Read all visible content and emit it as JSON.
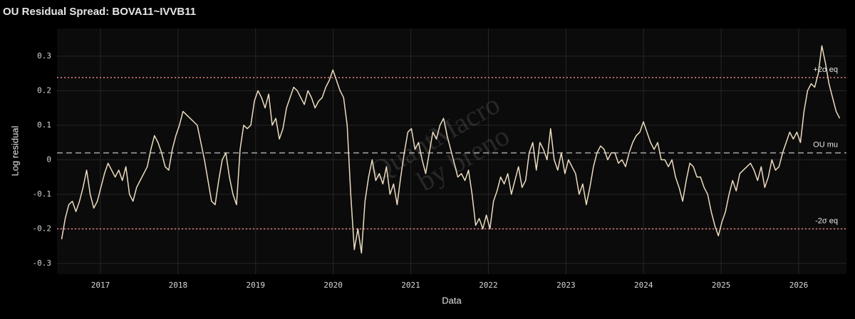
{
  "chart_data": {
    "type": "line",
    "title": "OU Residual Spread: BOVA11~IVVB11",
    "x_label": "Data",
    "y_label": "Log residual",
    "watermark": [
      "QuantMacro",
      "by breno"
    ],
    "color": "#eddcbf",
    "x": [
      2016.5,
      2016.546,
      2016.592,
      2016.638,
      2016.684,
      2016.73,
      2016.776,
      2016.822,
      2016.868,
      2016.914,
      2016.96,
      2017.006,
      2017.052,
      2017.098,
      2017.144,
      2017.19,
      2017.236,
      2017.282,
      2017.328,
      2017.374,
      2017.42,
      2017.466,
      2017.512,
      2017.558,
      2017.604,
      2017.65,
      2017.696,
      2017.742,
      2017.788,
      2017.834,
      2017.88,
      2017.926,
      2017.972,
      2018.018,
      2018.064,
      2018.11,
      2018.156,
      2018.202,
      2018.248,
      2018.294,
      2018.34,
      2018.386,
      2018.432,
      2018.478,
      2018.524,
      2018.57,
      2018.616,
      2018.662,
      2018.708,
      2018.754,
      2018.8,
      2018.846,
      2018.892,
      2018.938,
      2018.984,
      2019.03,
      2019.076,
      2019.122,
      2019.168,
      2019.214,
      2019.26,
      2019.306,
      2019.352,
      2019.398,
      2019.444,
      2019.49,
      2019.536,
      2019.582,
      2019.628,
      2019.674,
      2019.72,
      2019.766,
      2019.812,
      2019.858,
      2019.904,
      2019.95,
      2019.996,
      2020.042,
      2020.088,
      2020.134,
      2020.18,
      2020.226,
      2020.272,
      2020.318,
      2020.364,
      2020.41,
      2020.456,
      2020.502,
      2020.548,
      2020.594,
      2020.64,
      2020.686,
      2020.732,
      2020.778,
      2020.824,
      2020.87,
      2020.916,
      2020.962,
      2021.008,
      2021.054,
      2021.1,
      2021.146,
      2021.192,
      2021.238,
      2021.284,
      2021.33,
      2021.376,
      2021.422,
      2021.468,
      2021.514,
      2021.56,
      2021.606,
      2021.652,
      2021.698,
      2021.744,
      2021.79,
      2021.836,
      2021.882,
      2021.928,
      2021.974,
      2022.02,
      2022.066,
      2022.112,
      2022.158,
      2022.204,
      2022.25,
      2022.296,
      2022.342,
      2022.388,
      2022.434,
      2022.48,
      2022.526,
      2022.572,
      2022.618,
      2022.664,
      2022.71,
      2022.756,
      2022.802,
      2022.848,
      2022.894,
      2022.94,
      2022.986,
      2023.032,
      2023.078,
      2023.124,
      2023.17,
      2023.216,
      2023.262,
      2023.308,
      2023.354,
      2023.4,
      2023.446,
      2023.492,
      2023.538,
      2023.584,
      2023.63,
      2023.676,
      2023.722,
      2023.768,
      2023.814,
      2023.86,
      2023.906,
      2023.952,
      2023.998,
      2024.044,
      2024.09,
      2024.136,
      2024.182,
      2024.228,
      2024.274,
      2024.32,
      2024.366,
      2024.412,
      2024.458,
      2024.504,
      2024.55,
      2024.596,
      2024.642,
      2024.688,
      2024.734,
      2024.78,
      2024.826,
      2024.872,
      2024.918,
      2024.964,
      2025.01,
      2025.056,
      2025.102,
      2025.148,
      2025.194,
      2025.24,
      2025.286,
      2025.332,
      2025.378,
      2025.424,
      2025.47,
      2025.516,
      2025.562,
      2025.608,
      2025.654,
      2025.7,
      2025.746,
      2025.792,
      2025.838,
      2025.884,
      2025.93,
      2025.976,
      2026.022,
      2026.068,
      2026.114,
      2026.16,
      2026.206,
      2026.252,
      2026.298,
      2026.344,
      2026.39,
      2026.436,
      2026.482,
      2026.528
    ],
    "values": [
      -0.23,
      -0.17,
      -0.13,
      -0.12,
      -0.15,
      -0.12,
      -0.08,
      -0.03,
      -0.1,
      -0.14,
      -0.12,
      -0.08,
      -0.04,
      -0.01,
      -0.03,
      -0.05,
      -0.03,
      -0.06,
      -0.02,
      -0.1,
      -0.12,
      -0.08,
      -0.06,
      -0.04,
      -0.02,
      0.03,
      0.07,
      0.05,
      0.02,
      -0.02,
      -0.03,
      0.03,
      0.07,
      0.1,
      0.14,
      0.13,
      0.12,
      0.11,
      0.1,
      0.05,
      0,
      -0.06,
      -0.12,
      -0.13,
      -0.06,
      0,
      0.02,
      -0.05,
      -0.1,
      -0.13,
      0.03,
      0.1,
      0.09,
      0.1,
      0.17,
      0.2,
      0.18,
      0.15,
      0.19,
      0.1,
      0.12,
      0.06,
      0.09,
      0.15,
      0.18,
      0.21,
      0.2,
      0.18,
      0.16,
      0.2,
      0.18,
      0.15,
      0.17,
      0.18,
      0.21,
      0.23,
      0.26,
      0.23,
      0.2,
      0.18,
      0.1,
      -0.1,
      -0.26,
      -0.2,
      -0.27,
      -0.12,
      -0.05,
      0,
      -0.06,
      -0.04,
      -0.07,
      -0.02,
      -0.1,
      -0.07,
      -0.13,
      -0.05,
      0.02,
      0.08,
      0.09,
      0.03,
      0.05,
      0,
      -0.04,
      0.02,
      0.08,
      0.06,
      0.1,
      0.12,
      0.07,
      0.03,
      -0.01,
      -0.05,
      -0.04,
      -0.06,
      -0.03,
      -0.1,
      -0.19,
      -0.17,
      -0.2,
      -0.16,
      -0.2,
      -0.12,
      -0.09,
      -0.05,
      -0.07,
      -0.04,
      -0.1,
      -0.06,
      -0.02,
      -0.08,
      -0.06,
      0.02,
      0.05,
      -0.03,
      0.05,
      0.03,
      0,
      0.09,
      0,
      -0.03,
      0.02,
      -0.04,
      0,
      -0.02,
      -0.04,
      -0.1,
      -0.07,
      -0.13,
      -0.08,
      -0.02,
      0.02,
      0.04,
      0.03,
      0,
      0.02,
      0.02,
      -0.01,
      0,
      -0.02,
      0.02,
      0.05,
      0.07,
      0.08,
      0.11,
      0.08,
      0.05,
      0.03,
      0.05,
      0,
      0,
      -0.02,
      0,
      -0.05,
      -0.08,
      -0.12,
      -0.06,
      -0.01,
      -0.02,
      -0.05,
      -0.05,
      -0.08,
      -0.1,
      -0.15,
      -0.19,
      -0.22,
      -0.18,
      -0.15,
      -0.1,
      -0.06,
      -0.09,
      -0.04,
      -0.03,
      -0.02,
      -0.01,
      -0.03,
      -0.06,
      -0.02,
      -0.08,
      -0.05,
      0,
      -0.03,
      -0.02,
      0.02,
      0.05,
      0.08,
      0.06,
      0.08,
      0.05,
      0.14,
      0.2,
      0.22,
      0.21,
      0.25,
      0.33,
      0.28,
      0.22,
      0.18,
      0.14,
      0.12
    ],
    "reference_lines": [
      {
        "label": "+2σ eq",
        "value": 0.238,
        "color": "#e07a78",
        "style": "dotted"
      },
      {
        "label": "OU mu",
        "value": 0.02,
        "color": "#9a9a9a",
        "style": "dashed"
      },
      {
        "label": "-2σ eq",
        "value": -0.2,
        "color": "#e07a78",
        "style": "dotted"
      }
    ],
    "xlim": [
      2016.44,
      2026.615
    ],
    "xticks": [
      2017,
      2018,
      2019,
      2020,
      2021,
      2022,
      2023,
      2024,
      2025,
      2026
    ],
    "ylim": [
      -0.331,
      0.38
    ],
    "yticks": [
      -0.3,
      -0.2,
      -0.1,
      0,
      0.1,
      0.2,
      0.3
    ],
    "grid": true
  }
}
